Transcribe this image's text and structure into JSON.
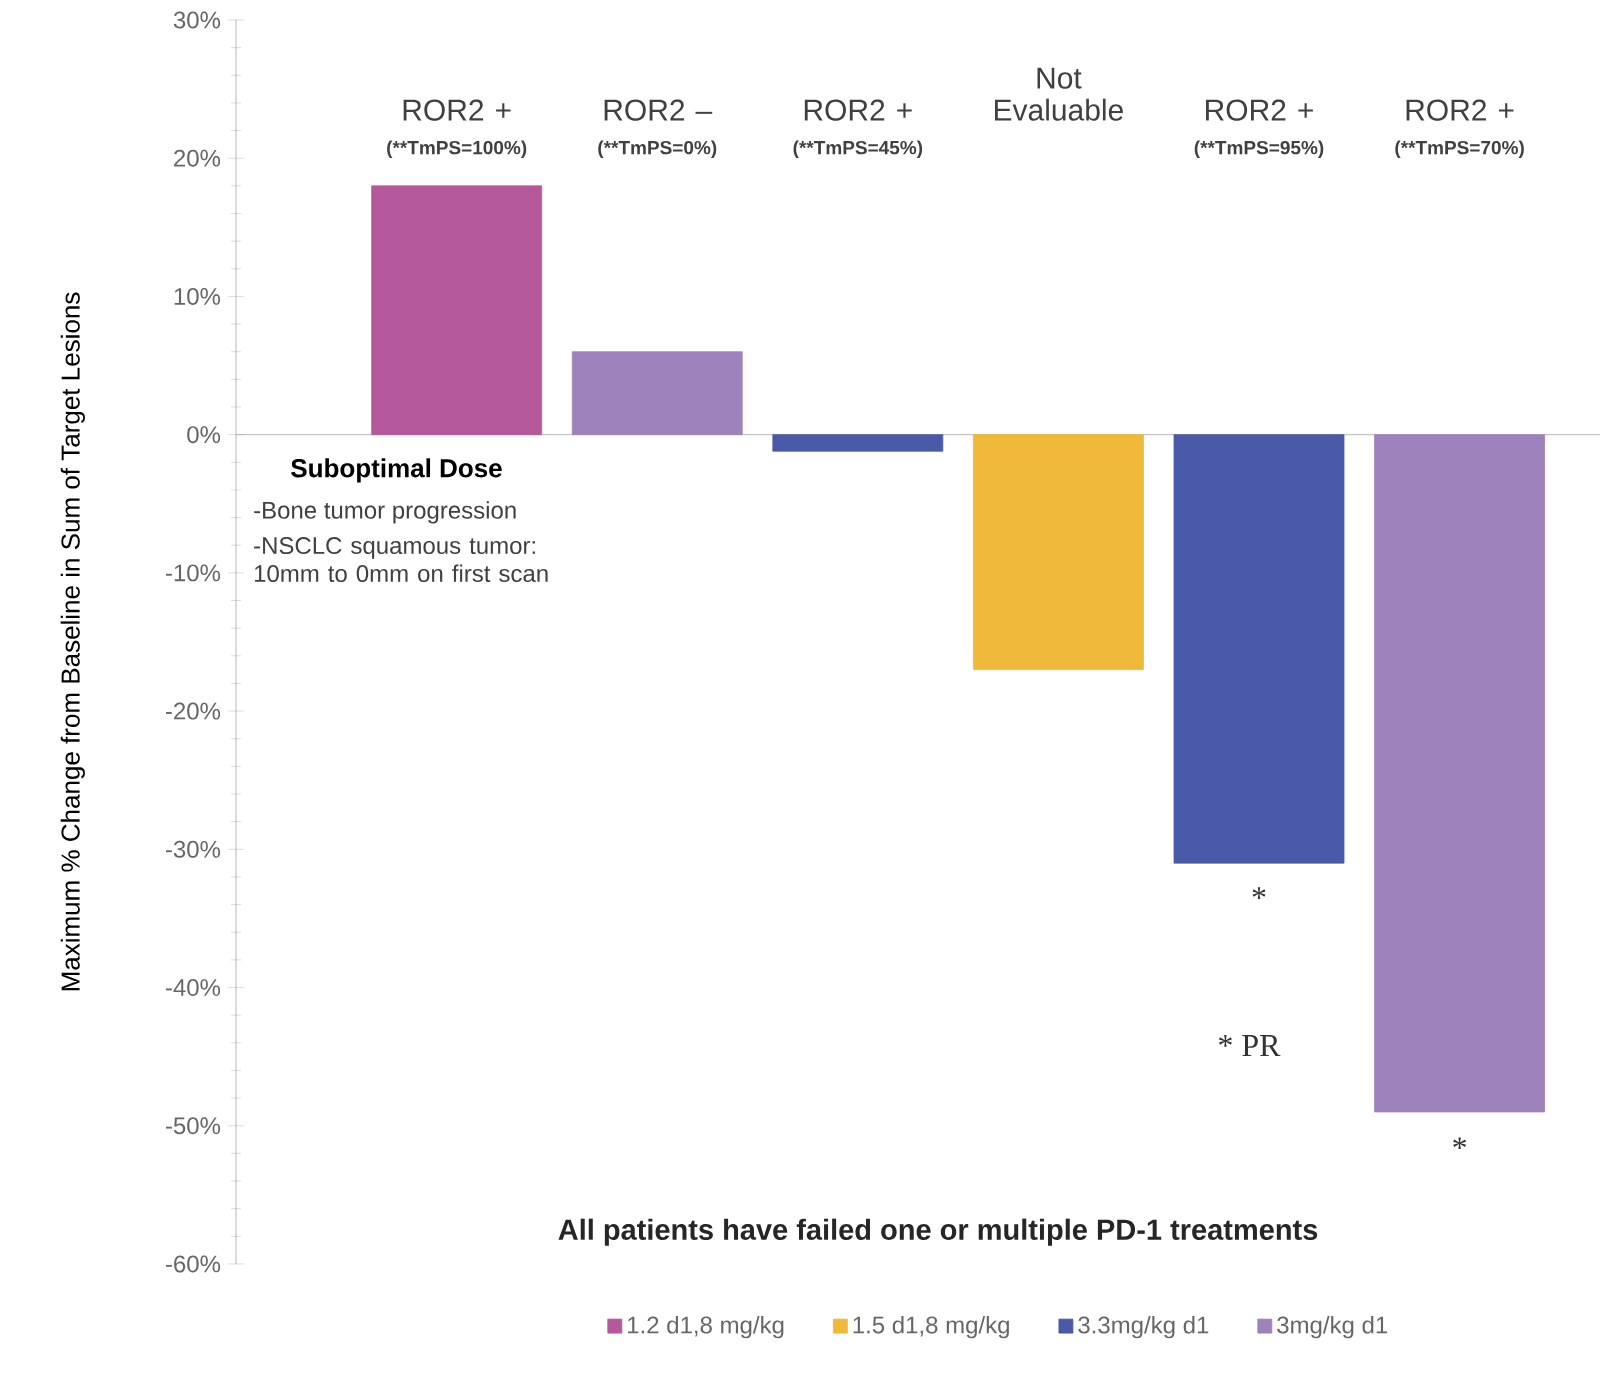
{
  "chart_data": {
    "type": "bar",
    "ylabel": "Maximum % Change from Baseline in Sum of Target Lesions",
    "categories": [
      "ROR2 +",
      "ROR2 –",
      "ROR2 +",
      "Not Evaluable",
      "ROR2 +",
      "ROR2 +"
    ],
    "series": [
      {
        "name": "1.2 d1,8 mg/kg",
        "color": "#b5589b",
        "values": [
          18,
          null,
          null,
          null,
          null,
          null
        ]
      },
      {
        "name": "1.5 d1,8 mg/kg",
        "color": "#f0b93a",
        "values": [
          null,
          null,
          null,
          -17,
          null,
          null
        ]
      },
      {
        "name": "3.3mg/kg d1",
        "color": "#4a5aa8",
        "values": [
          null,
          null,
          -1.2,
          null,
          -31,
          null
        ]
      },
      {
        "name": "3mg/kg d1",
        "color": "#9e82bb",
        "values": [
          null,
          6,
          null,
          null,
          null,
          -49
        ]
      }
    ],
    "ylim": [
      -60,
      30
    ],
    "yticks": [
      {
        "value": -60,
        "label": "-60%"
      },
      {
        "value": -50,
        "label": "-50%"
      },
      {
        "value": -40,
        "label": "-40%"
      },
      {
        "value": -30,
        "label": "-30%"
      },
      {
        "value": -20,
        "label": "-20%"
      },
      {
        "value": -10,
        "label": "-10%"
      },
      {
        "value": 0,
        "label": "0%"
      },
      {
        "value": 10,
        "label": "10%"
      },
      {
        "value": 20,
        "label": "20%"
      },
      {
        "value": 30,
        "label": "30%"
      }
    ],
    "legend": "bottom",
    "annotations": [
      "(**TmPS=100%)",
      "(**TmPS=0%)",
      "(**TmPS=45%)",
      "(**TmPS=95%)",
      "(**TmPS=70%)",
      "**Suboptimal Dose**",
      "-Bone tumor progression",
      "-NSCLC squamous tumor: 10mm to 0mm on first scan",
      "*",
      "*",
      "* PR",
      "**All patients have failed one or multiple PD-1 treatments**"
    ]
  }
}
